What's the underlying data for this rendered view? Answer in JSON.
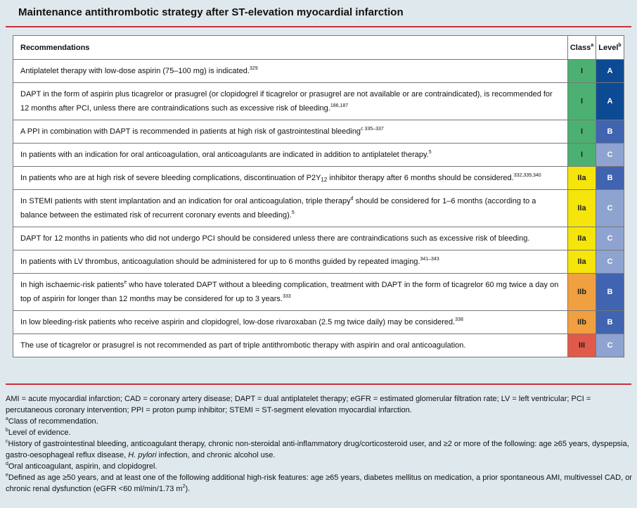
{
  "title": "Maintenance antithrombotic strategy after ST-elevation myocardial infarction",
  "table": {
    "header": {
      "recommendations": "Recommendations",
      "class": [
        "Class",
        {
          "sup": "a"
        }
      ],
      "level": [
        "Level",
        {
          "sup": "b"
        }
      ]
    },
    "rows": [
      {
        "text": [
          "Antiplatelet therapy with low-dose aspirin (75–100 mg) is indicated.",
          {
            "sup": "329"
          }
        ],
        "class": "I",
        "level": "A",
        "class_color": "#4cb072",
        "level_color": "#0d4a94"
      },
      {
        "text": [
          "DAPT in the form of aspirin plus ticagrelor or prasugrel (or clopidogrel if ticagrelor or prasugrel are not available or are contraindicated), is recommended for 12 months after PCI, unless there are contraindications such as excessive risk of bleeding.",
          {
            "sup": "186,187"
          }
        ],
        "class": "I",
        "level": "A",
        "class_color": "#4cb072",
        "level_color": "#0d4a94"
      },
      {
        "text": [
          "A PPI in combination with DAPT is recommended in patients at high risk of gastrointestinal bleeding",
          {
            "sup": "c 335–337"
          }
        ],
        "class": "I",
        "level": "B",
        "class_color": "#4cb072",
        "level_color": "#4064b0"
      },
      {
        "text": [
          "In patients with an indication for oral anticoagulation, oral anticoagulants are indicated in addition to antiplatelet therapy.",
          {
            "sup": "5"
          }
        ],
        "class": "I",
        "level": "C",
        "class_color": "#4cb072",
        "level_color": "#8fa3d0"
      },
      {
        "text": [
          "In patients who are at high risk of severe bleeding complications, discontinuation of P2Y",
          {
            "sub": "12"
          },
          " inhibitor therapy after 6 months should be considered.",
          {
            "sup": "332,339,340"
          }
        ],
        "class": "IIa",
        "level": "B",
        "class_color": "#f5e50a",
        "level_color": "#4064b0"
      },
      {
        "text": [
          "In STEMI patients with stent implantation and an indication for oral anticoagulation, triple therapy",
          {
            "sup": "d"
          },
          " should be considered for 1–6 months (according to a balance between the estimated risk of recurrent coronary events and bleeding).",
          {
            "sup": "5"
          }
        ],
        "class": "IIa",
        "level": "C",
        "class_color": "#f5e50a",
        "level_color": "#8fa3d0"
      },
      {
        "text": [
          "DAPT for 12 months in patients who did not undergo PCI should be considered unless there are contraindications such as excessive risk of bleeding."
        ],
        "class": "IIa",
        "level": "C",
        "class_color": "#f5e50a",
        "level_color": "#8fa3d0"
      },
      {
        "text": [
          "In patients with LV thrombus, anticoagulation should be administered for up to 6 months guided by repeated imaging.",
          {
            "sup": "341–343"
          }
        ],
        "class": "IIa",
        "level": "C",
        "class_color": "#f5e50a",
        "level_color": "#8fa3d0"
      },
      {
        "text": [
          "In high ischaemic-risk patients",
          {
            "sup": "e"
          },
          " who have tolerated DAPT without a bleeding complication, treatment with DAPT in the form of ticagrelor 60 mg twice a day on top of aspirin for longer than 12 months may be considered for up to 3 years.",
          {
            "sup": "333"
          }
        ],
        "class": "IIb",
        "level": "B",
        "class_color": "#f0a040",
        "level_color": "#4064b0"
      },
      {
        "text": [
          "In low bleeding-risk patients who receive aspirin and clopidogrel, low-dose rivaroxaban (2.5 mg twice daily) may be considered.",
          {
            "sup": "338"
          }
        ],
        "class": "IIb",
        "level": "B",
        "class_color": "#f0a040",
        "level_color": "#4064b0"
      },
      {
        "text": [
          "The use of ticagrelor or prasugrel is not recommended as part of triple antithrombotic therapy with aspirin and oral anticoagulation."
        ],
        "class": "III",
        "level": "C",
        "class_color": "#e05a4a",
        "level_color": "#8fa3d0"
      }
    ]
  },
  "footnotes": [
    [
      "AMI = acute myocardial infarction; CAD = coronary artery disease; DAPT = dual antiplatelet therapy; eGFR = estimated glomerular filtration rate; LV = left ventricular; PCI = percutaneous coronary intervention; PPI = proton pump inhibitor; STEMI = ST-segment elevation myocardial infarction."
    ],
    [
      {
        "sup": "a"
      },
      "Class of recommendation."
    ],
    [
      {
        "sup": "b"
      },
      "Level of evidence."
    ],
    [
      {
        "sup": "c"
      },
      "History of gastrointestinal bleeding, anticoagulant therapy, chronic non-steroidal anti-inflammatory drug/corticosteroid user, and ≥2 or more of the following: age ≥65 years, dyspepsia, gastro-oesophageal reflux disease, ",
      {
        "i": "H. pylori"
      },
      " infection, and chronic alcohol use."
    ],
    [
      {
        "sup": "d"
      },
      "Oral anticoagulant, aspirin, and clopidogrel."
    ],
    [
      {
        "sup": "e"
      },
      "Defined as age ≥50 years, and at least one of the following additional high-risk features: age ≥65 years, diabetes mellitus on medication, a prior spontaneous AMI, multivessel CAD, or chronic renal dysfunction (eGFR <60 ml/min/1.73 m",
      {
        "sup": "2"
      },
      ")."
    ]
  ]
}
